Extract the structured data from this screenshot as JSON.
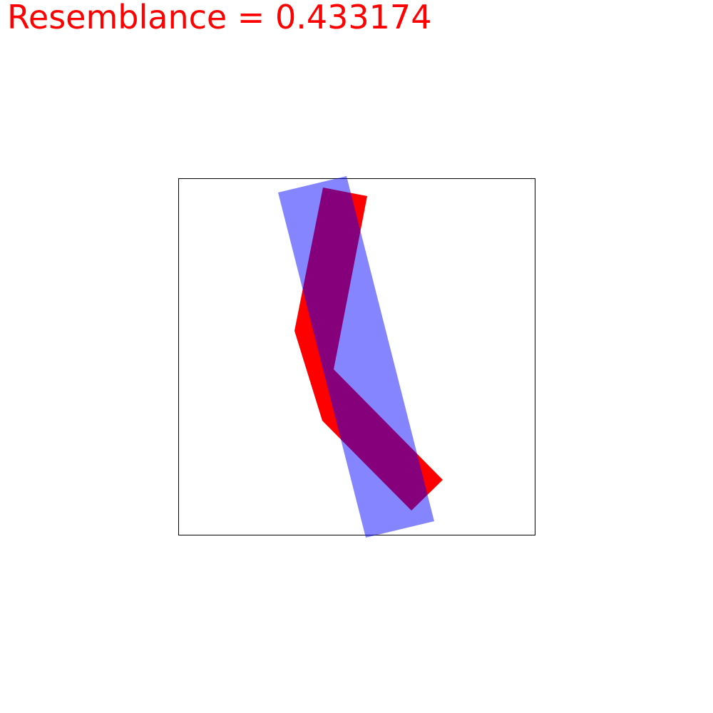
{
  "header": {
    "label": "Resemblance = 0.433174",
    "color": "#ff0000"
  },
  "shapes": {
    "red_polygon_color": "#ff0000",
    "blue_rectangle_color": "#0000ff",
    "blue_rectangle_opacity": 0.48,
    "overlap_color": "#800080",
    "frame_color": "#000000"
  }
}
